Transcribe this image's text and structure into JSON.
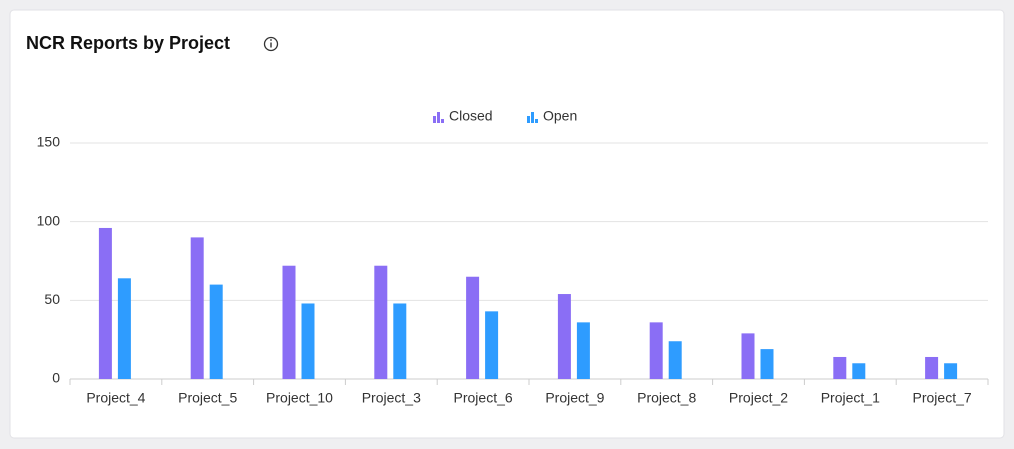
{
  "chart_data": {
    "type": "bar",
    "title": "NCR Reports by Project",
    "categories": [
      "Project_4",
      "Project_5",
      "Project_10",
      "Project_3",
      "Project_6",
      "Project_9",
      "Project_8",
      "Project_2",
      "Project_1",
      "Project_7"
    ],
    "series": [
      {
        "name": "Closed",
        "color": "#8a6ef5",
        "values": [
          96,
          90,
          72,
          72,
          65,
          54,
          36,
          29,
          14,
          14
        ]
      },
      {
        "name": "Open",
        "color": "#2e9cff",
        "values": [
          64,
          60,
          48,
          48,
          43,
          36,
          24,
          19,
          10,
          10
        ]
      }
    ],
    "ylim": [
      0,
      150
    ],
    "yticks": [
      0,
      50,
      100,
      150
    ],
    "grid": true,
    "legend": "top"
  }
}
